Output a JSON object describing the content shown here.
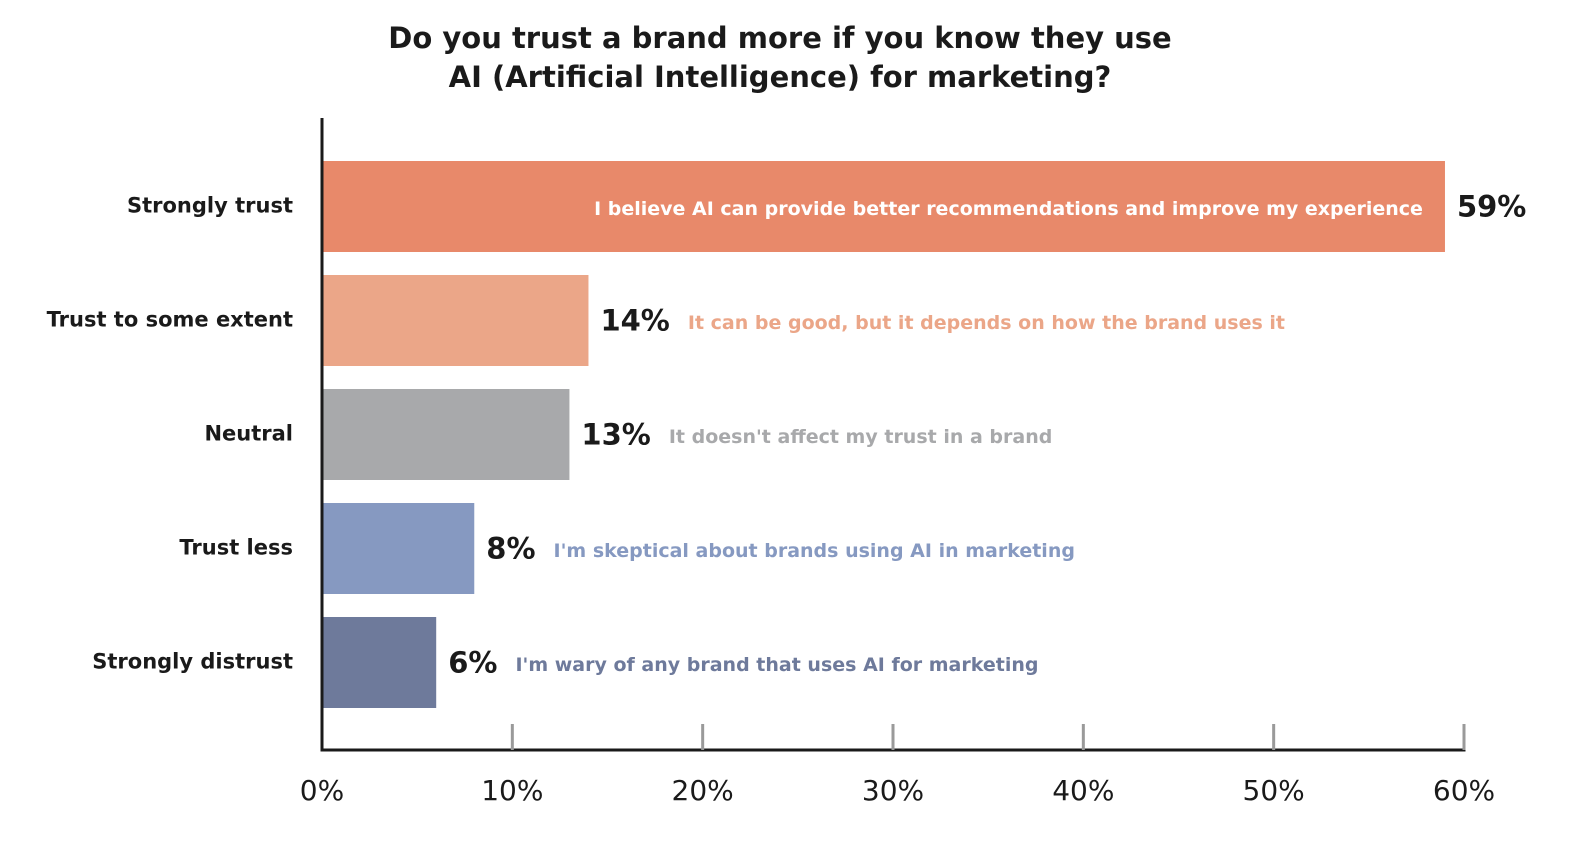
{
  "chart_data": {
    "type": "bar",
    "orientation": "horizontal",
    "title": [
      "Do you trust a brand more if you know they use",
      "AI (Artificial Intelligence) for marketing?"
    ],
    "categories": [
      "Strongly trust",
      "Trust to some extent",
      "Neutral",
      "Trust less",
      "Strongly distrust"
    ],
    "values": [
      59,
      14,
      13,
      8,
      6
    ],
    "value_labels": [
      "59%",
      "14%",
      "13%",
      "8%",
      "6%"
    ],
    "annotations": [
      "I believe AI can provide better recommendations and improve my experience",
      "It can be good, but it depends on how the brand uses it",
      "It doesn't affect my trust in a brand",
      "I'm skeptical about brands using AI in marketing",
      "I'm wary of any brand that uses AI for marketing"
    ],
    "colors": [
      "#e8896a",
      "#eba688",
      "#a8a9ab",
      "#8699c1",
      "#6e7a9b"
    ],
    "annotation_colors": [
      "#ffffff",
      "#eba688",
      "#a8a9ab",
      "#8699c1",
      "#6e7a9b"
    ],
    "annotation_inside": [
      true,
      false,
      false,
      false,
      false
    ],
    "xlim": [
      0,
      60
    ],
    "xticks": [
      0,
      10,
      20,
      30,
      40,
      50,
      60
    ],
    "xtick_labels": [
      "0%",
      "10%",
      "20%",
      "30%",
      "40%",
      "50%",
      "60%"
    ],
    "xlabel": "",
    "ylabel": "",
    "grid": false
  }
}
